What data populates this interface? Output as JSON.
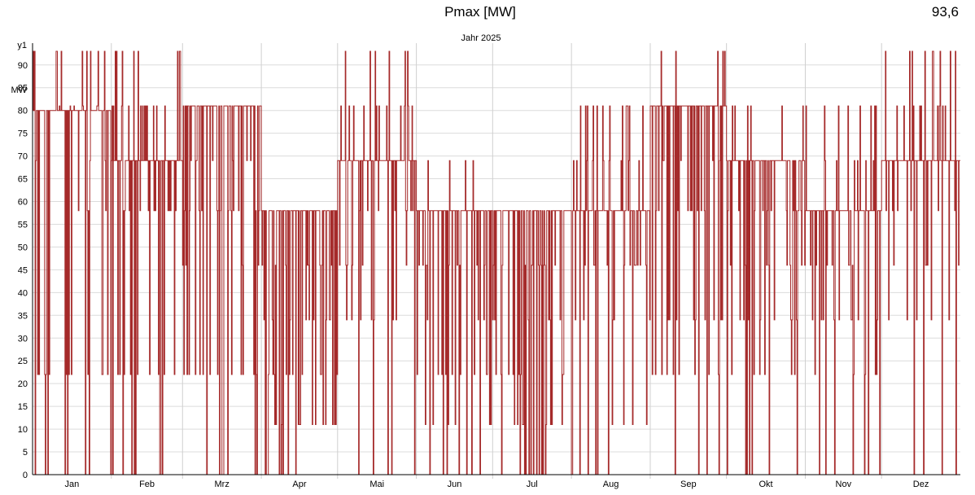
{
  "header": {
    "title": "Pmax [MW]",
    "value": "93,6"
  },
  "chart_data": {
    "type": "line",
    "subtitle": "Jahr 2025",
    "y_axis_name": "y1",
    "ylabel": "MW",
    "ylim": [
      0,
      93
    ],
    "yticks": [
      0,
      5,
      10,
      15,
      20,
      25,
      30,
      35,
      40,
      45,
      50,
      55,
      60,
      65,
      70,
      75,
      80,
      85,
      90
    ],
    "grid": true,
    "series_color": "#a52a2a",
    "months": [
      "Jan",
      "Feb",
      "Mrz",
      "Apr",
      "Mai",
      "Jun",
      "Jul",
      "Aug",
      "Sep",
      "Okt",
      "Nov",
      "Dez"
    ],
    "days_per_month": [
      31,
      28,
      31,
      30,
      31,
      30,
      31,
      31,
      30,
      31,
      30,
      31
    ],
    "month_levels": [
      [
        80,
        93,
        81,
        69,
        58,
        0,
        22
      ],
      [
        69,
        81,
        93,
        58,
        0,
        22
      ],
      [
        81,
        69,
        58,
        46,
        0,
        22
      ],
      [
        58,
        46,
        34,
        0,
        22,
        11
      ],
      [
        69,
        81,
        58,
        34,
        0,
        46,
        93
      ],
      [
        58,
        46,
        34,
        11,
        0,
        22,
        69
      ],
      [
        58,
        34,
        22,
        11,
        0,
        46
      ],
      [
        58,
        69,
        34,
        11,
        0,
        46,
        81
      ],
      [
        81,
        93,
        69,
        58,
        22,
        0,
        34
      ],
      [
        69,
        81,
        58,
        46,
        34,
        0,
        22
      ],
      [
        58,
        46,
        69,
        81,
        34,
        22,
        0
      ],
      [
        69,
        81,
        58,
        46,
        93,
        0,
        34
      ]
    ]
  }
}
